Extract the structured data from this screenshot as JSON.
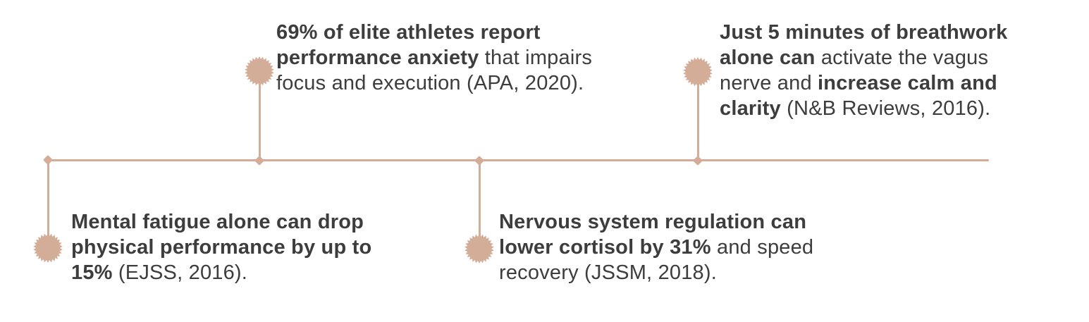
{
  "figure": {
    "type": "timeline-infographic",
    "background": "#ffffff",
    "accent_color": "#d4ad99",
    "text_color": "#3d3d3d"
  },
  "callouts": [
    {
      "id": "mental-fatigue-stat",
      "placement": "below-line",
      "lines": [
        [
          {
            "t": "Mental fatigue alone can drop",
            "b": true
          }
        ],
        [
          {
            "t": "physical performance by up to",
            "b": true
          }
        ],
        [
          {
            "t": "15%",
            "b": true
          },
          {
            "t": " (EJSS, 2016).",
            "b": false
          }
        ]
      ]
    },
    {
      "id": "performance-anxiety-stat",
      "placement": "above-line",
      "lines": [
        [
          {
            "t": "69% of elite athletes report",
            "b": true
          }
        ],
        [
          {
            "t": "performance anxiety",
            "b": true
          },
          {
            "t": " that impairs",
            "b": false
          }
        ],
        [
          {
            "t": "focus and execution (APA, 2020).",
            "b": false
          }
        ]
      ]
    },
    {
      "id": "nervous-system-stat",
      "placement": "below-line",
      "lines": [
        [
          {
            "t": "Nervous system regulation can",
            "b": true
          }
        ],
        [
          {
            "t": "lower cortisol by 31%",
            "b": true
          },
          {
            "t": " and speed",
            "b": false
          }
        ],
        [
          {
            "t": "recovery (JSSM, 2018).",
            "b": false
          }
        ]
      ]
    },
    {
      "id": "breathwork-stat",
      "placement": "above-line",
      "lines": [
        [
          {
            "t": "Just 5 minutes of breathwork",
            "b": true
          }
        ],
        [
          {
            "t": "alone can",
            "b": true
          },
          {
            "t": " activate the vagus",
            "b": false
          }
        ],
        [
          {
            "t": "nerve and",
            "b": false
          },
          {
            "t": " increase calm and",
            "b": true
          }
        ],
        [
          {
            "t": "clarity",
            "b": true
          },
          {
            "t": " (N&B Reviews, 2016).",
            "b": false
          }
        ]
      ]
    }
  ]
}
